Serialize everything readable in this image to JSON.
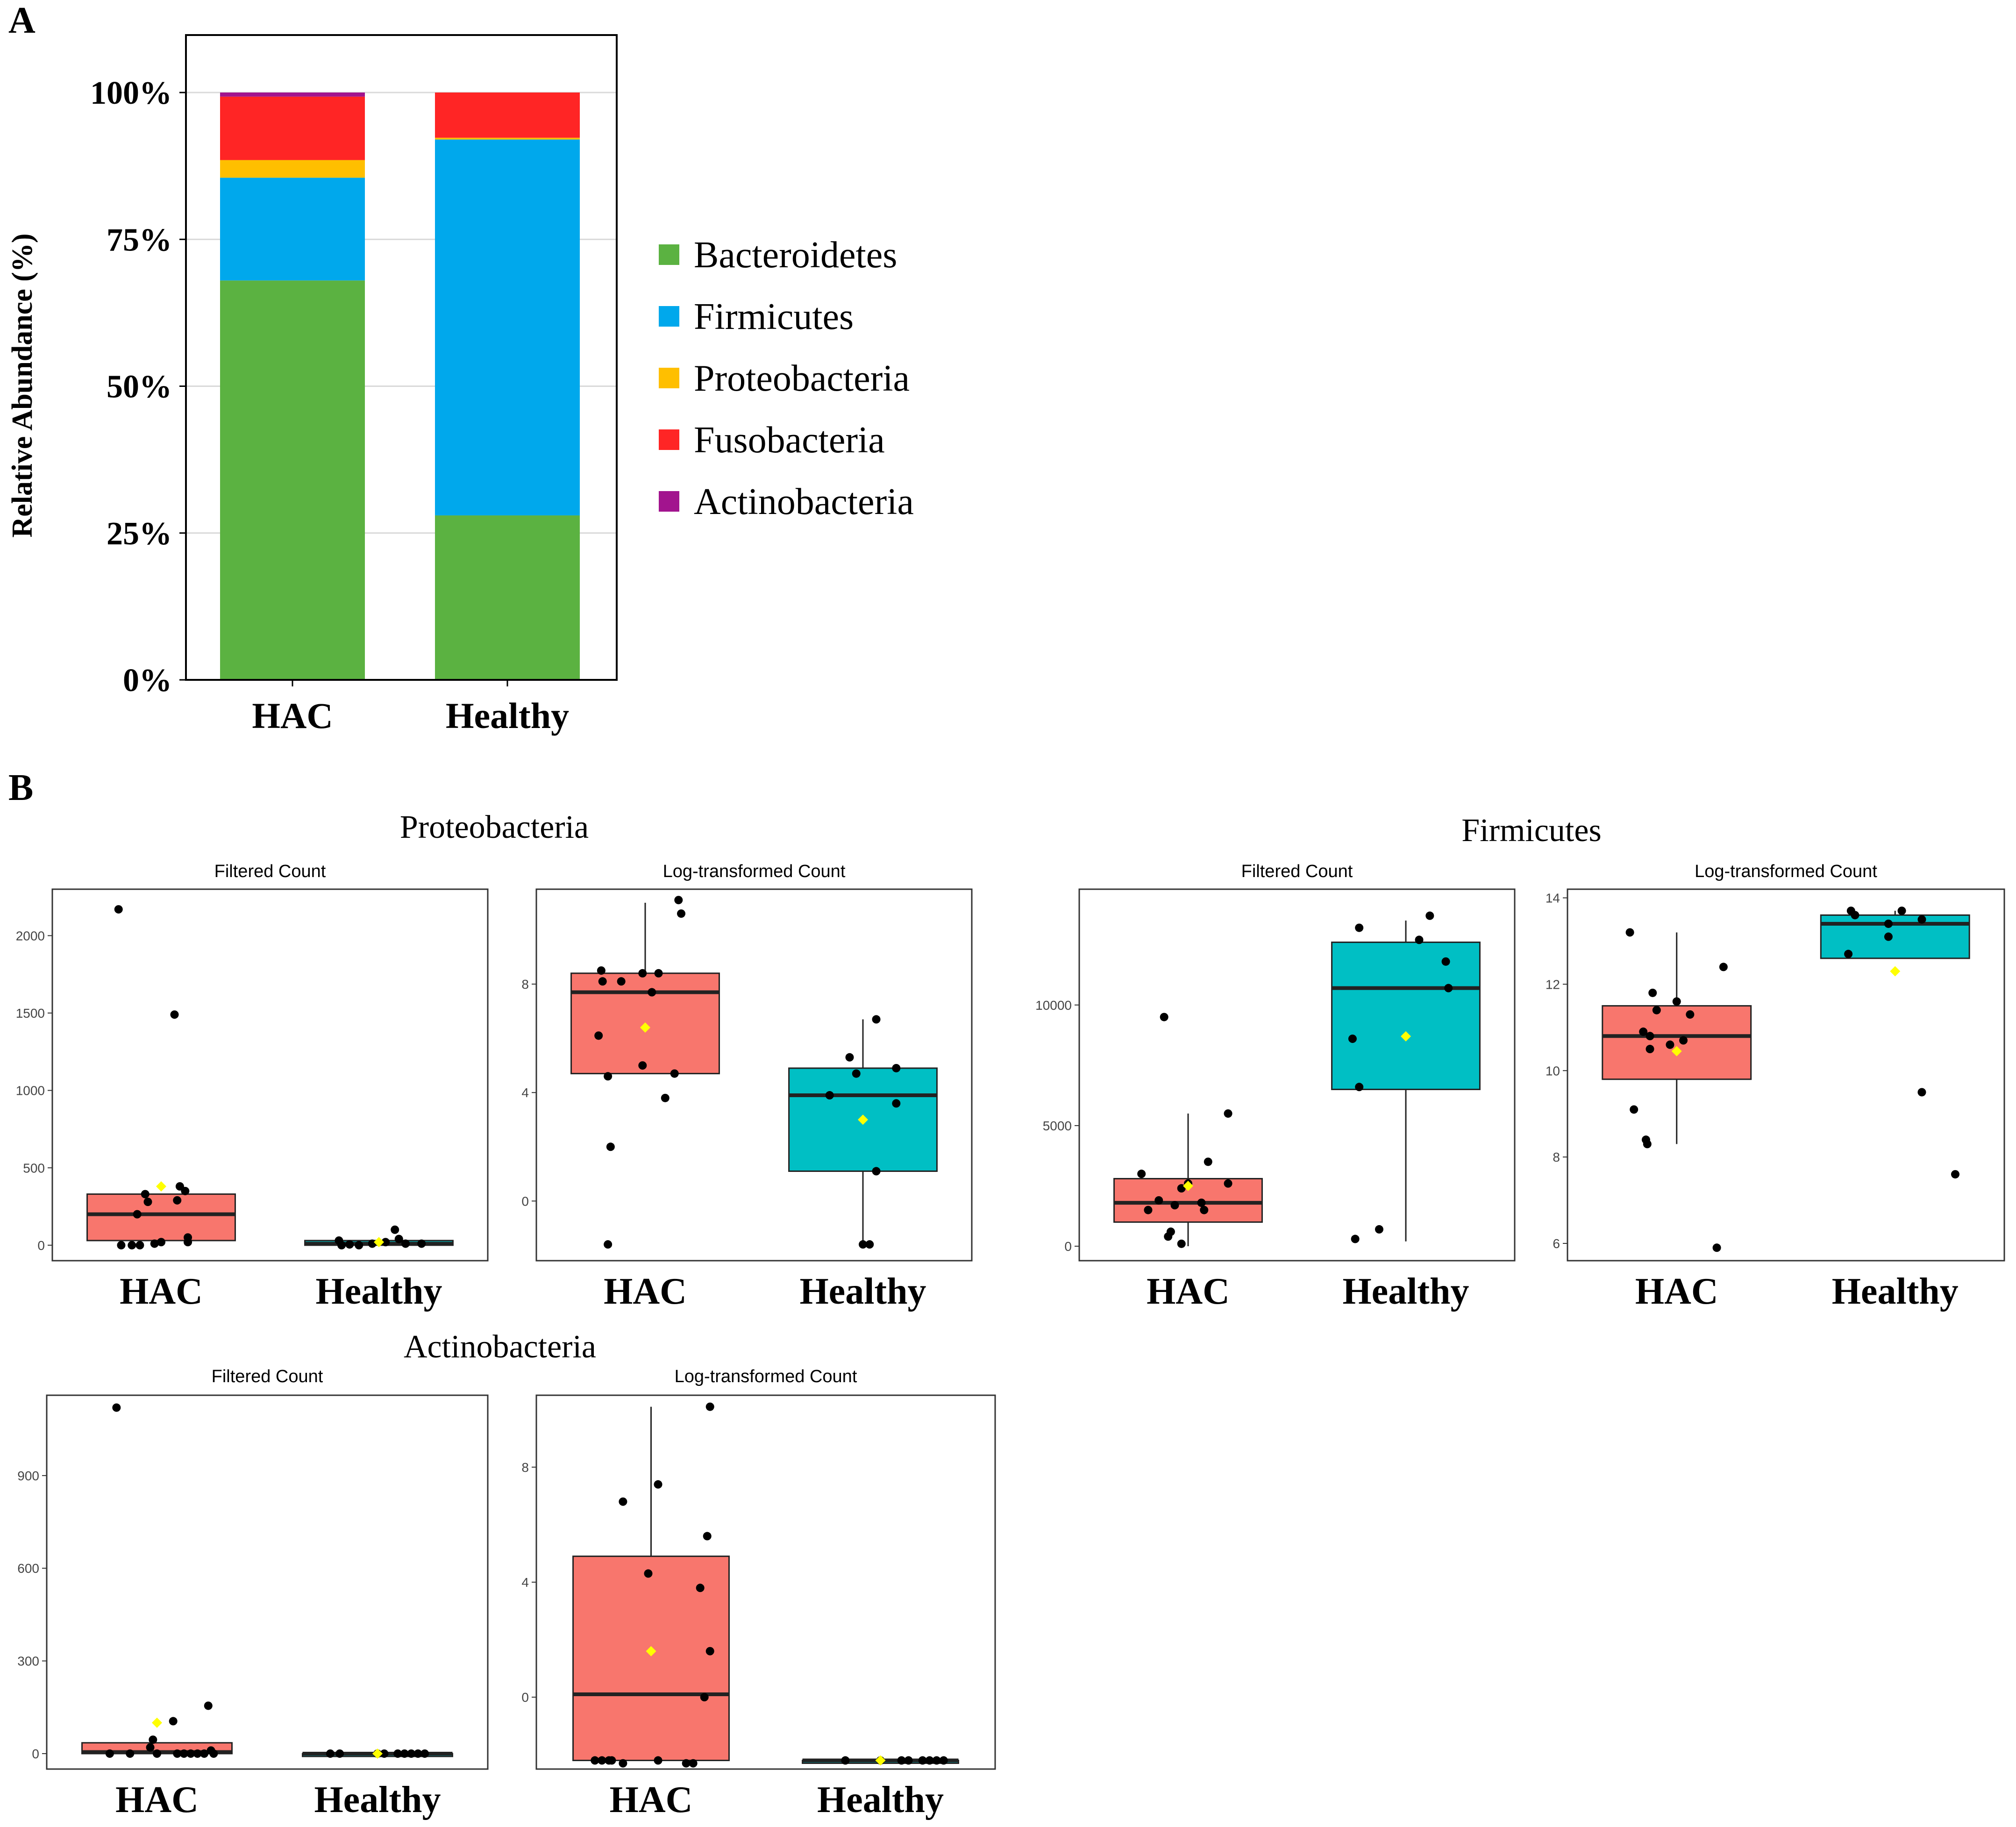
{
  "colors": {
    "Bacteroidetes": "#5BB241",
    "Firmicutes": "#00A8EC",
    "Proteobacteria": "#FFBF00",
    "Fusobacteria": "#FF2525",
    "Actinobacteria": "#A2148E",
    "hac_box": "#F8766D",
    "healthy_box": "#00BFC4",
    "mean_marker": "#FFFF00",
    "point": "#000000"
  },
  "panel_labels": {
    "a": "A",
    "b": "B"
  },
  "chart_data": [
    {
      "id": "A",
      "type": "bar",
      "stacked": true,
      "title": "",
      "ylabel": "Relative Abundance (%)",
      "xlabel": "",
      "categories": [
        "HAC",
        "Healthy"
      ],
      "ylim": [
        0,
        100
      ],
      "yticks": [
        "0%",
        "25%",
        "50%",
        "75%",
        "100%"
      ],
      "ytick_values": [
        0,
        25,
        50,
        75,
        100
      ],
      "grid": true,
      "legend_position": "right",
      "series": [
        {
          "name": "Bacteroidetes",
          "values": [
            68,
            28
          ]
        },
        {
          "name": "Firmicutes",
          "values": [
            17.5,
            64
          ]
        },
        {
          "name": "Proteobacteria",
          "values": [
            3,
            0.3
          ]
        },
        {
          "name": "Fusobacteria",
          "values": [
            10.8,
            7.7
          ]
        },
        {
          "name": "Actinobacteria",
          "values": [
            0.7,
            0
          ]
        }
      ]
    },
    {
      "id": "B-Proteobacteria",
      "type": "box",
      "group_title": "Proteobacteria",
      "panels": [
        {
          "title": "Filtered Count",
          "categories": [
            "HAC",
            "Healthy"
          ],
          "ylim": [
            -100,
            2300
          ],
          "yticks": [
            0,
            500,
            1000,
            1500,
            2000
          ],
          "boxes": [
            {
              "q1": 30,
              "median": 200,
              "q3": 330,
              "whisk_lo": 0,
              "whisk_hi": 330,
              "mean": 380,
              "points": [
                [
                  -0.32,
                  2170
                ],
                [
                  -0.3,
                  0
                ],
                [
                  -0.22,
                  0
                ],
                [
                  -0.18,
                  200
                ],
                [
                  -0.12,
                  330
                ],
                [
                  -0.1,
                  280
                ],
                [
                  -0.05,
                  10
                ],
                [
                  0.0,
                  20
                ],
                [
                  0.1,
                  1490
                ],
                [
                  0.12,
                  290
                ],
                [
                  0.14,
                  380
                ],
                [
                  0.18,
                  350
                ],
                [
                  0.2,
                  50
                ],
                [
                  0.2,
                  20
                ],
                [
                  -0.16,
                  0
                ]
              ]
            },
            {
              "q1": 0,
              "median": 10,
              "q3": 30,
              "whisk_lo": 0,
              "whisk_hi": 30,
              "mean": 20,
              "points": [
                [
                  -0.3,
                  30
                ],
                [
                  -0.28,
                  0
                ],
                [
                  -0.22,
                  5
                ],
                [
                  -0.15,
                  0
                ],
                [
                  -0.05,
                  10
                ],
                [
                  0.05,
                  20
                ],
                [
                  0.12,
                  100
                ],
                [
                  0.15,
                  40
                ],
                [
                  0.2,
                  10
                ],
                [
                  0.32,
                  10
                ]
              ]
            }
          ]
        },
        {
          "title": "Log-transformed Count",
          "categories": [
            "HAC",
            "Healthy"
          ],
          "ylim": [
            -2.2,
            11.5
          ],
          "yticks": [
            0,
            4,
            8
          ],
          "boxes": [
            {
              "q1": 4.7,
              "median": 7.7,
              "q3": 8.4,
              "whisk_lo": 4.7,
              "whisk_hi": 11.0,
              "mean": 6.4,
              "points": [
                [
                  -0.35,
                  6.1
                ],
                [
                  -0.32,
                  8.1
                ],
                [
                  -0.28,
                  4.6
                ],
                [
                  -0.26,
                  2.0
                ],
                [
                  -0.18,
                  8.1
                ],
                [
                  -0.02,
                  8.4
                ],
                [
                  -0.02,
                  5.0
                ],
                [
                  0.05,
                  7.7
                ],
                [
                  0.1,
                  8.4
                ],
                [
                  0.15,
                  3.8
                ],
                [
                  0.22,
                  4.7
                ],
                [
                  0.25,
                  11.1
                ],
                [
                  0.27,
                  10.6
                ],
                [
                  -0.28,
                  -1.6
                ],
                [
                  -0.33,
                  8.5
                ]
              ]
            },
            {
              "q1": 1.1,
              "median": 3.9,
              "q3": 4.9,
              "whisk_lo": -1.6,
              "whisk_hi": 6.7,
              "mean": 3.0,
              "points": [
                [
                  -0.25,
                  3.9
                ],
                [
                  -0.1,
                  5.3
                ],
                [
                  -0.05,
                  4.7
                ],
                [
                  0.0,
                  -1.6
                ],
                [
                  0.05,
                  -1.6
                ],
                [
                  0.1,
                  1.1
                ],
                [
                  0.1,
                  6.7
                ],
                [
                  0.25,
                  4.9
                ],
                [
                  0.25,
                  3.6
                ]
              ]
            }
          ]
        }
      ]
    },
    {
      "id": "B-Firmicutes",
      "type": "box",
      "group_title": "Firmicutes",
      "panels": [
        {
          "title": "Filtered Count",
          "categories": [
            "HAC",
            "Healthy"
          ],
          "ylim": [
            -600,
            14800
          ],
          "yticks": [
            0,
            5000,
            10000
          ],
          "boxes": [
            {
              "q1": 1000,
              "median": 1800,
              "q3": 2800,
              "whisk_lo": 0,
              "whisk_hi": 5500,
              "mean": 2500,
              "points": [
                [
                  -0.35,
                  3000
                ],
                [
                  -0.3,
                  1500
                ],
                [
                  -0.22,
                  1900
                ],
                [
                  -0.18,
                  9500
                ],
                [
                  -0.15,
                  400
                ],
                [
                  -0.13,
                  600
                ],
                [
                  -0.1,
                  1700
                ],
                [
                  -0.05,
                  100
                ],
                [
                  0.0,
                  2600
                ],
                [
                  0.1,
                  1800
                ],
                [
                  0.12,
                  1500
                ],
                [
                  0.15,
                  3500
                ],
                [
                  0.3,
                  2600
                ],
                [
                  0.3,
                  5500
                ],
                [
                  -0.05,
                  2400
                ]
              ]
            },
            {
              "q1": 6500,
              "median": 10700,
              "q3": 12600,
              "whisk_lo": 200,
              "whisk_hi": 13500,
              "mean": 8700,
              "points": [
                [
                  -0.4,
                  8600
                ],
                [
                  -0.35,
                  6600
                ],
                [
                  -0.35,
                  13200
                ],
                [
                  -0.2,
                  700
                ],
                [
                  -0.38,
                  300
                ],
                [
                  0.1,
                  12700
                ],
                [
                  0.18,
                  13700
                ],
                [
                  0.3,
                  11800
                ],
                [
                  0.32,
                  10700
                ]
              ]
            }
          ]
        },
        {
          "title": "Log-transformed Count",
          "categories": [
            "HAC",
            "Healthy"
          ],
          "ylim": [
            5.6,
            14.2
          ],
          "yticks": [
            6,
            8,
            10,
            12,
            14
          ],
          "boxes": [
            {
              "q1": 9.8,
              "median": 10.8,
              "q3": 11.5,
              "whisk_lo": 8.3,
              "whisk_hi": 13.2,
              "mean": 10.45,
              "points": [
                [
                  -0.35,
                  13.2
                ],
                [
                  -0.32,
                  9.1
                ],
                [
                  -0.25,
                  10.9
                ],
                [
                  -0.23,
                  8.4
                ],
                [
                  -0.22,
                  8.3
                ],
                [
                  -0.2,
                  10.5
                ],
                [
                  -0.18,
                  11.8
                ],
                [
                  -0.15,
                  11.4
                ],
                [
                  -0.05,
                  10.6
                ],
                [
                  0.05,
                  10.7
                ],
                [
                  0.0,
                  11.6
                ],
                [
                  0.1,
                  11.3
                ],
                [
                  0.35,
                  12.4
                ],
                [
                  0.3,
                  5.9
                ],
                [
                  -0.2,
                  10.8
                ]
              ]
            },
            {
              "q1": 12.6,
              "median": 13.4,
              "q3": 13.6,
              "whisk_lo": 12.6,
              "whisk_hi": 13.7,
              "mean": 12.3,
              "points": [
                [
                  -0.35,
                  12.7
                ],
                [
                  -0.33,
                  13.7
                ],
                [
                  -0.3,
                  13.6
                ],
                [
                  -0.05,
                  13.4
                ],
                [
                  -0.05,
                  13.1
                ],
                [
                  0.05,
                  13.7
                ],
                [
                  0.2,
                  13.5
                ],
                [
                  0.2,
                  9.5
                ],
                [
                  0.45,
                  7.6
                ]
              ]
            }
          ]
        }
      ]
    },
    {
      "id": "B-Actinobacteria",
      "type": "box",
      "group_title": "Actinobacteria",
      "panels": [
        {
          "title": "Filtered Count",
          "categories": [
            "HAC",
            "Healthy"
          ],
          "ylim": [
            -50,
            1160
          ],
          "yticks": [
            0,
            300,
            600,
            900
          ],
          "boxes": [
            {
              "q1": 0,
              "median": 5,
              "q3": 35,
              "whisk_lo": 0,
              "whisk_hi": 35,
              "mean": 100,
              "points": [
                [
                  -0.3,
                  1120
                ],
                [
                  -0.35,
                  0
                ],
                [
                  -0.2,
                  0
                ],
                [
                  -0.05,
                  20
                ],
                [
                  -0.03,
                  45
                ],
                [
                  0.0,
                  0
                ],
                [
                  0.12,
                  105
                ],
                [
                  0.15,
                  0
                ],
                [
                  0.2,
                  0
                ],
                [
                  0.25,
                  0
                ],
                [
                  0.3,
                  0
                ],
                [
                  0.35,
                  0
                ],
                [
                  0.4,
                  10
                ],
                [
                  0.38,
                  155
                ],
                [
                  0.42,
                  0
                ]
              ]
            },
            {
              "q1": 0,
              "median": 0,
              "q3": 0,
              "whisk_lo": 0,
              "whisk_hi": 0,
              "mean": 0,
              "points": [
                [
                  -0.35,
                  0
                ],
                [
                  -0.28,
                  0
                ],
                [
                  0.0,
                  0
                ],
                [
                  0.05,
                  0
                ],
                [
                  0.15,
                  0
                ],
                [
                  0.2,
                  0
                ],
                [
                  0.25,
                  0
                ],
                [
                  0.3,
                  0
                ],
                [
                  0.35,
                  0
                ]
              ]
            }
          ]
        },
        {
          "title": "Log-transformed Count",
          "categories": [
            "HAC",
            "Healthy"
          ],
          "ylim": [
            -2.5,
            10.5
          ],
          "yticks": [
            0,
            4,
            8
          ],
          "boxes": [
            {
              "q1": -2.2,
              "median": 0.1,
              "q3": 4.9,
              "whisk_lo": -2.2,
              "whisk_hi": 10.1,
              "mean": 1.6,
              "points": [
                [
                  -0.4,
                  -2.2
                ],
                [
                  -0.35,
                  -2.2
                ],
                [
                  -0.3,
                  -2.2
                ],
                [
                  -0.28,
                  -2.2
                ],
                [
                  -0.2,
                  -2.3
                ],
                [
                  -0.2,
                  6.8
                ],
                [
                  -0.02,
                  4.3
                ],
                [
                  0.05,
                  7.4
                ],
                [
                  0.05,
                  -2.2
                ],
                [
                  0.25,
                  -2.3
                ],
                [
                  0.3,
                  -2.3
                ],
                [
                  0.35,
                  3.8
                ],
                [
                  0.38,
                  0.0
                ],
                [
                  0.4,
                  5.6
                ],
                [
                  0.42,
                  10.1
                ],
                [
                  0.42,
                  1.6
                ]
              ]
            },
            {
              "q1": -2.2,
              "median": -2.2,
              "q3": -2.2,
              "whisk_lo": -2.2,
              "whisk_hi": -2.2,
              "mean": -2.2,
              "points": [
                [
                  -0.25,
                  -2.2
                ],
                [
                  0.0,
                  -2.2
                ],
                [
                  0.15,
                  -2.2
                ],
                [
                  0.2,
                  -2.2
                ],
                [
                  0.3,
                  -2.2
                ],
                [
                  0.35,
                  -2.2
                ],
                [
                  0.4,
                  -2.2
                ],
                [
                  0.45,
                  -2.2
                ]
              ]
            }
          ]
        }
      ]
    }
  ]
}
